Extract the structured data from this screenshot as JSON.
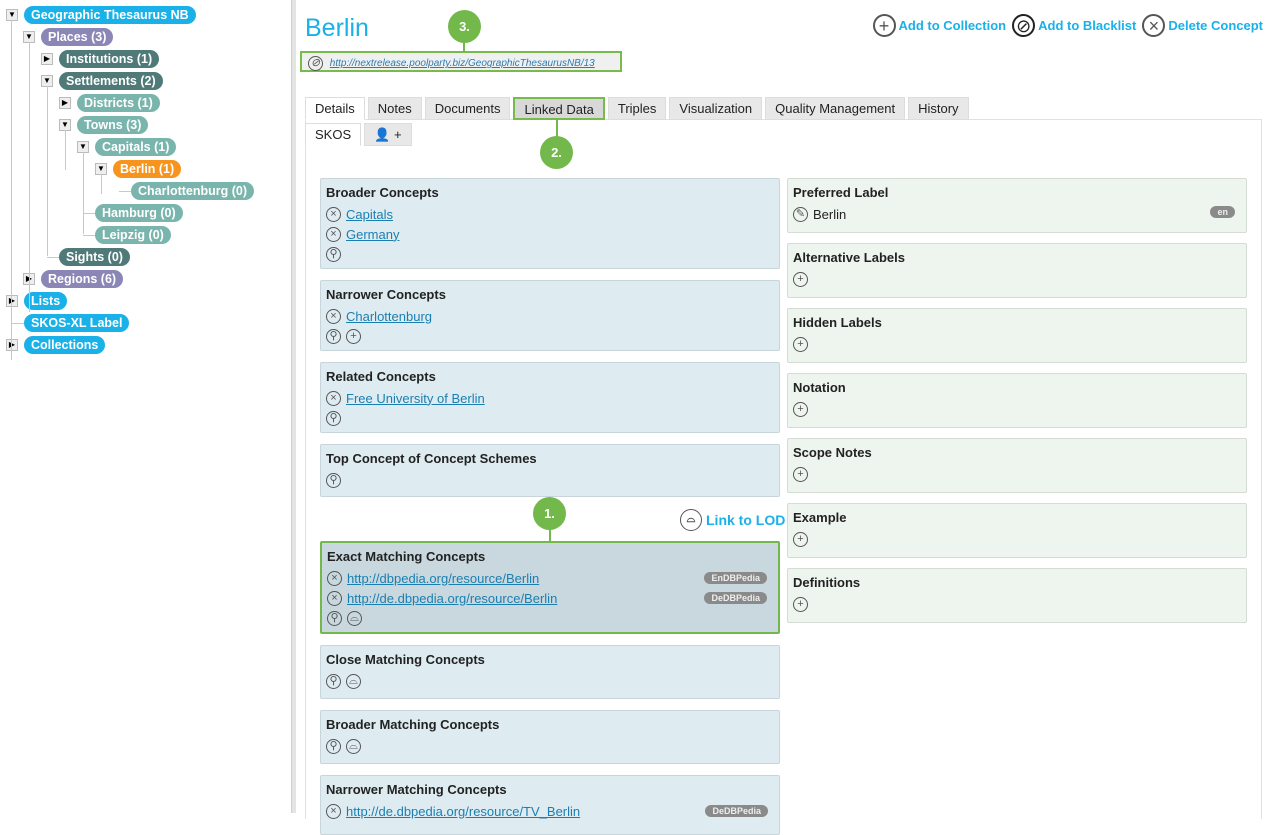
{
  "tree": [
    {
      "label": "Geographic Thesaurus NB",
      "level": 0,
      "kind": "root",
      "toggle": "open"
    },
    {
      "label": "Places (3)",
      "level": 1,
      "kind": "top",
      "toggle": "open"
    },
    {
      "label": "Institutions (1)",
      "level": 2,
      "kind": "dark",
      "toggle": "closed"
    },
    {
      "label": "Settlements (2)",
      "level": 2,
      "kind": "dark",
      "toggle": "open"
    },
    {
      "label": "Districts (1)",
      "level": 3,
      "kind": "light",
      "toggle": "closed"
    },
    {
      "label": "Towns (3)",
      "level": 3,
      "kind": "light",
      "toggle": "open"
    },
    {
      "label": "Capitals (1)",
      "level": 4,
      "kind": "light",
      "toggle": "open"
    },
    {
      "label": "Berlin (1)",
      "level": 5,
      "kind": "selected",
      "toggle": "open"
    },
    {
      "label": "Charlottenburg (0)",
      "level": 6,
      "kind": "light",
      "toggle": "none"
    },
    {
      "label": "Hamburg (0)",
      "level": 4,
      "kind": "light",
      "toggle": "none"
    },
    {
      "label": "Leipzig (0)",
      "level": 4,
      "kind": "light",
      "toggle": "none"
    },
    {
      "label": "Sights (0)",
      "level": 2,
      "kind": "dark",
      "toggle": "none"
    },
    {
      "label": "Regions (6)",
      "level": 1,
      "kind": "top",
      "toggle": "closed"
    },
    {
      "label": "Lists",
      "level": 0,
      "kind": "root",
      "toggle": "closed"
    },
    {
      "label": "SKOS-XL Label",
      "level": 0,
      "kind": "root",
      "toggle": "none"
    },
    {
      "label": "Collections",
      "level": 0,
      "kind": "root",
      "toggle": "closed"
    }
  ],
  "colors": {
    "root": "#1ab0e8",
    "top": "#8a86b5",
    "dark": "#4f7a78",
    "light": "#7ab5ad",
    "selected": "#f7941d",
    "accent": "#1ab0e8",
    "highlight": "#72b84a"
  },
  "concept": {
    "title": "Berlin",
    "uri": "http://nextrelease.poolparty.biz/GeographicThesaurusNB/13"
  },
  "actions": [
    {
      "label": "Add to Collection",
      "icon": "plus-circle-icon"
    },
    {
      "label": "Add to Blacklist",
      "icon": "ban-icon"
    },
    {
      "label": "Delete Concept",
      "icon": "x-circle-icon"
    }
  ],
  "tabs": [
    "Details",
    "Notes",
    "Documents",
    "Linked Data",
    "Triples",
    "Visualization",
    "Quality Management",
    "History"
  ],
  "active_tab": "Details",
  "subtabs": {
    "skos": "SKOS",
    "add_user": "+"
  },
  "link_to_lod": "Link to LOD",
  "markers": {
    "m1": "1.",
    "m2": "2.",
    "m3": "3."
  },
  "left_panels": [
    {
      "title": "Broader Concepts",
      "items": [
        {
          "text": "Capitals"
        },
        {
          "text": "Germany"
        }
      ],
      "tools": [
        "link"
      ]
    },
    {
      "title": "Narrower Concepts",
      "items": [
        {
          "text": "Charlottenburg"
        }
      ],
      "tools": [
        "link",
        "add"
      ]
    },
    {
      "title": "Related Concepts",
      "items": [
        {
          "text": "Free University of Berlin"
        }
      ],
      "tools": [
        "link"
      ]
    },
    {
      "title": "Top Concept of Concept Schemes",
      "items": [],
      "tools": [
        "link"
      ]
    },
    {
      "title": "Exact Matching Concepts",
      "items": [
        {
          "text": "http://dbpedia.org/resource/Berlin",
          "badge": "EnDBPedia"
        },
        {
          "text": "http://de.dbpedia.org/resource/Berlin",
          "badge": "DeDBPedia"
        }
      ],
      "tools": [
        "link",
        "lod"
      ],
      "highlight": true
    },
    {
      "title": "Close Matching Concepts",
      "items": [],
      "tools": [
        "link",
        "lod"
      ]
    },
    {
      "title": "Broader Matching Concepts",
      "items": [],
      "tools": [
        "link",
        "lod"
      ]
    },
    {
      "title": "Narrower Matching Concepts",
      "items": [
        {
          "text": "http://de.dbpedia.org/resource/TV_Berlin",
          "badge": "DeDBPedia"
        }
      ],
      "tools": []
    }
  ],
  "right_panels": [
    {
      "title": "Preferred Label",
      "value": "Berlin",
      "lang": "en"
    },
    {
      "title": "Alternative Labels"
    },
    {
      "title": "Hidden Labels"
    },
    {
      "title": "Notation"
    },
    {
      "title": "Scope Notes"
    },
    {
      "title": "Example"
    },
    {
      "title": "Definitions"
    }
  ]
}
